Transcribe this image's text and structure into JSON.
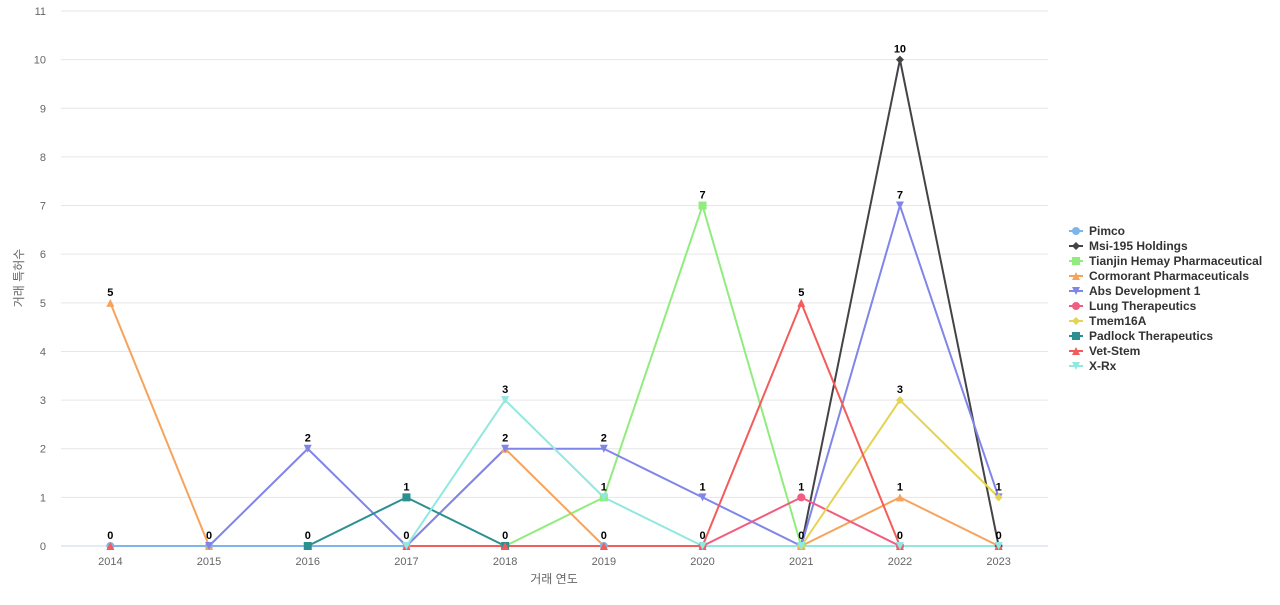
{
  "chart_data": {
    "type": "line",
    "title": "",
    "xlabel": "거래 연도",
    "ylabel": "거래 특허수",
    "categories": [
      "2014",
      "2015",
      "2016",
      "2017",
      "2018",
      "2019",
      "2020",
      "2021",
      "2022",
      "2023"
    ],
    "ylim": [
      0,
      11
    ],
    "yticks": [
      0,
      1,
      2,
      3,
      4,
      5,
      6,
      7,
      8,
      9,
      10,
      11
    ],
    "grid": true,
    "legend": "right",
    "series": [
      {
        "name": "Pimco",
        "color": "#7cb5ec",
        "marker": "circle",
        "values": [
          0,
          0,
          0,
          0,
          0,
          0,
          0,
          0,
          0,
          0
        ]
      },
      {
        "name": "Msi-195 Holdings",
        "color": "#434348",
        "marker": "diamond",
        "values": [
          null,
          null,
          null,
          null,
          null,
          null,
          null,
          0,
          10,
          0
        ]
      },
      {
        "name": "Tianjin Hemay Pharmaceutical",
        "color": "#90ed7d",
        "marker": "square",
        "values": [
          null,
          null,
          null,
          null,
          0,
          1,
          7,
          0,
          null,
          null
        ]
      },
      {
        "name": "Cormorant Pharmaceuticals",
        "color": "#f7a35c",
        "marker": "triangle",
        "values": [
          5,
          0,
          null,
          0,
          2,
          0,
          null,
          0,
          1,
          0
        ]
      },
      {
        "name": "Abs Development 1",
        "color": "#8085e9",
        "marker": "triangle-down",
        "values": [
          null,
          0,
          2,
          0,
          2,
          2,
          1,
          0,
          7,
          1
        ]
      },
      {
        "name": "Lung Therapeutics",
        "color": "#f15c80",
        "marker": "circle",
        "values": [
          null,
          null,
          null,
          null,
          null,
          null,
          0,
          1,
          0,
          null
        ]
      },
      {
        "name": "Tmem16A",
        "color": "#e4d354",
        "marker": "diamond",
        "values": [
          null,
          null,
          null,
          null,
          null,
          null,
          null,
          0,
          3,
          1
        ]
      },
      {
        "name": "Padlock Therapeutics",
        "color": "#2b908f",
        "marker": "square",
        "values": [
          null,
          null,
          0,
          1,
          0,
          null,
          null,
          null,
          null,
          null
        ]
      },
      {
        "name": "Vet-Stem",
        "color": "#f45b5b",
        "marker": "triangle",
        "values": [
          0,
          null,
          null,
          0,
          0,
          0,
          0,
          5,
          0,
          0
        ]
      },
      {
        "name": "X-Rx",
        "color": "#91e8e1",
        "marker": "triangle-down",
        "values": [
          null,
          null,
          null,
          0,
          3,
          1,
          0,
          0,
          0,
          0
        ]
      }
    ],
    "data_labels": [
      {
        "x": "2014",
        "y": 5,
        "text": "5"
      },
      {
        "x": "2014",
        "y": 0,
        "text": "0"
      },
      {
        "x": "2015",
        "y": 0,
        "text": "0"
      },
      {
        "x": "2016",
        "y": 2,
        "text": "2"
      },
      {
        "x": "2016",
        "y": 0,
        "text": "0"
      },
      {
        "x": "2017",
        "y": 1,
        "text": "1"
      },
      {
        "x": "2017",
        "y": 0,
        "text": "0"
      },
      {
        "x": "2018",
        "y": 3,
        "text": "3"
      },
      {
        "x": "2018",
        "y": 2,
        "text": "2"
      },
      {
        "x": "2018",
        "y": 0,
        "text": "0"
      },
      {
        "x": "2019",
        "y": 2,
        "text": "2"
      },
      {
        "x": "2019",
        "y": 1,
        "text": "1"
      },
      {
        "x": "2019",
        "y": 0,
        "text": "0"
      },
      {
        "x": "2020",
        "y": 7,
        "text": "7"
      },
      {
        "x": "2020",
        "y": 1,
        "text": "1"
      },
      {
        "x": "2020",
        "y": 0,
        "text": "0"
      },
      {
        "x": "2021",
        "y": 5,
        "text": "5"
      },
      {
        "x": "2021",
        "y": 1,
        "text": "1"
      },
      {
        "x": "2021",
        "y": 0,
        "text": "0"
      },
      {
        "x": "2022",
        "y": 10,
        "text": "10"
      },
      {
        "x": "2022",
        "y": 7,
        "text": "7"
      },
      {
        "x": "2022",
        "y": 3,
        "text": "3"
      },
      {
        "x": "2022",
        "y": 1,
        "text": "1"
      },
      {
        "x": "2022",
        "y": 0,
        "text": "0"
      },
      {
        "x": "2023",
        "y": 1,
        "text": "1"
      },
      {
        "x": "2023",
        "y": 0,
        "text": "0"
      }
    ]
  }
}
